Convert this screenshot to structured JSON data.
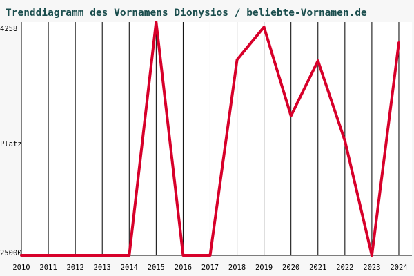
{
  "chart_data": {
    "type": "line",
    "title": "Trenddiagramm des Vornamens Dionysios / beliebte-Vornamen.de",
    "ylabel": "Platz",
    "y_tick_labels": {
      "top": "4258",
      "bottom": "25000"
    },
    "ylim_rank": [
      4258,
      25000
    ],
    "y_axis_inverted": true,
    "grid": "vertical",
    "x": [
      2010,
      2011,
      2012,
      2013,
      2014,
      2015,
      2016,
      2017,
      2018,
      2019,
      2020,
      2021,
      2022,
      2023,
      2024
    ],
    "series": [
      {
        "color": "#d7002a",
        "values": [
          25000,
          25000,
          25000,
          25000,
          25000,
          4258,
          25000,
          25000,
          7600,
          4700,
          12600,
          7700,
          14800,
          25000,
          6100
        ]
      }
    ]
  }
}
